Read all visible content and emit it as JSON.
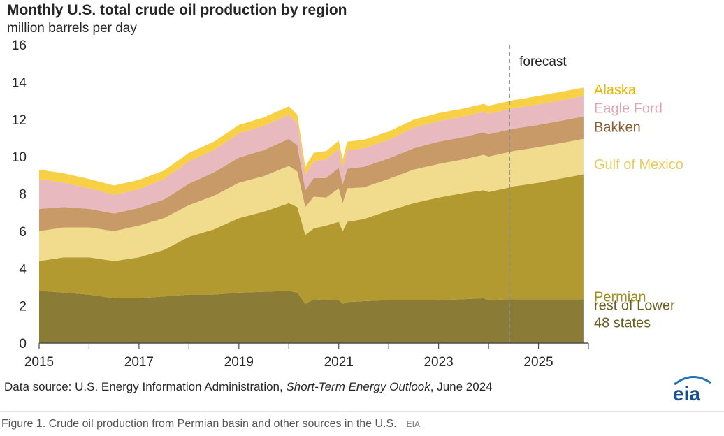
{
  "title": "Monthly U.S. total crude oil production by region",
  "subtitle": "million barrels per day",
  "forecast_label": "forecast",
  "source": {
    "prefix": "Data source: U.S. Energy Information Administration, ",
    "publication": "Short-Term Energy Outlook",
    "suffix": ", June 2024"
  },
  "logo_text": "eia",
  "caption": {
    "text": "Figure 1. Crude oil production from Permian basin and other sources in the U.S.",
    "credit": "EIA"
  },
  "chart_data": {
    "type": "area",
    "stacked": true,
    "ylabel": "million barrels per day",
    "ylim": [
      0,
      16
    ],
    "yticks": [
      0,
      2,
      4,
      6,
      8,
      10,
      12,
      14,
      16
    ],
    "xlim": [
      2015.0,
      2026.0
    ],
    "xticks": [
      2015,
      2017,
      2019,
      2021,
      2023,
      2025
    ],
    "grid": false,
    "forecast_start": 2024.42,
    "legend": "right, labels aligned with series",
    "x": [
      2015.0,
      2015.5,
      2016.0,
      2016.5,
      2017.0,
      2017.5,
      2018.0,
      2018.5,
      2019.0,
      2019.5,
      2020.0,
      2020.17,
      2020.33,
      2020.5,
      2020.75,
      2021.0,
      2021.08,
      2021.17,
      2021.5,
      2022.0,
      2022.5,
      2023.0,
      2023.5,
      2023.9,
      2024.0,
      2024.42,
      2024.5,
      2025.0,
      2025.5,
      2025.9
    ],
    "series": [
      {
        "name": "rest of Lower 48 states",
        "color": "#8a7b36",
        "label_y": 1.6,
        "values": [
          2.8,
          2.7,
          2.6,
          2.4,
          2.4,
          2.5,
          2.6,
          2.6,
          2.7,
          2.75,
          2.8,
          2.7,
          2.1,
          2.35,
          2.3,
          2.3,
          2.1,
          2.2,
          2.25,
          2.3,
          2.3,
          2.3,
          2.35,
          2.4,
          2.3,
          2.35,
          2.35,
          2.35,
          2.35,
          2.35
        ]
      },
      {
        "name": "Permian",
        "color": "#b39a30",
        "label_y": 2.5,
        "values": [
          1.6,
          1.9,
          2.0,
          2.0,
          2.2,
          2.5,
          3.1,
          3.5,
          4.0,
          4.3,
          4.7,
          4.6,
          3.7,
          3.8,
          4.0,
          4.2,
          3.9,
          4.3,
          4.4,
          4.8,
          5.2,
          5.5,
          5.7,
          5.8,
          5.8,
          6.0,
          6.05,
          6.25,
          6.5,
          6.7
        ]
      },
      {
        "name": "Gulf of Mexico",
        "color": "#f0dc8c",
        "label_y": 9.6,
        "values": [
          1.6,
          1.6,
          1.6,
          1.6,
          1.7,
          1.7,
          1.7,
          1.8,
          1.9,
          1.9,
          2.0,
          1.9,
          1.5,
          1.7,
          1.5,
          1.8,
          1.5,
          1.8,
          1.7,
          1.7,
          1.8,
          1.8,
          1.8,
          1.9,
          1.9,
          1.9,
          1.9,
          1.9,
          1.9,
          1.9
        ]
      },
      {
        "name": "Bakken",
        "color": "#c79a68",
        "label_y": 11.6,
        "values": [
          1.2,
          1.1,
          1.0,
          0.95,
          0.95,
          1.0,
          1.15,
          1.25,
          1.35,
          1.4,
          1.45,
          1.4,
          0.9,
          1.0,
          1.05,
          1.1,
          1.0,
          1.05,
          1.1,
          1.1,
          1.15,
          1.2,
          1.2,
          1.2,
          1.2,
          1.2,
          1.2,
          1.2,
          1.2,
          1.2
        ]
      },
      {
        "name": "Eagle Ford",
        "color": "#e8b9bf",
        "label_y": 12.6,
        "values": [
          1.6,
          1.3,
          1.1,
          1.0,
          1.0,
          1.1,
          1.2,
          1.2,
          1.3,
          1.3,
          1.3,
          1.2,
          0.8,
          0.9,
          1.0,
          1.0,
          0.9,
          1.0,
          1.0,
          1.0,
          1.1,
          1.1,
          1.1,
          1.1,
          1.1,
          1.1,
          1.1,
          1.1,
          1.1,
          1.1
        ]
      },
      {
        "name": "Alaska",
        "color": "#f7d046",
        "label_y": 13.6,
        "values": [
          0.5,
          0.5,
          0.5,
          0.5,
          0.5,
          0.45,
          0.45,
          0.45,
          0.45,
          0.45,
          0.45,
          0.45,
          0.45,
          0.45,
          0.45,
          0.45,
          0.45,
          0.45,
          0.45,
          0.45,
          0.43,
          0.43,
          0.43,
          0.43,
          0.43,
          0.43,
          0.43,
          0.45,
          0.45,
          0.45
        ]
      }
    ]
  }
}
